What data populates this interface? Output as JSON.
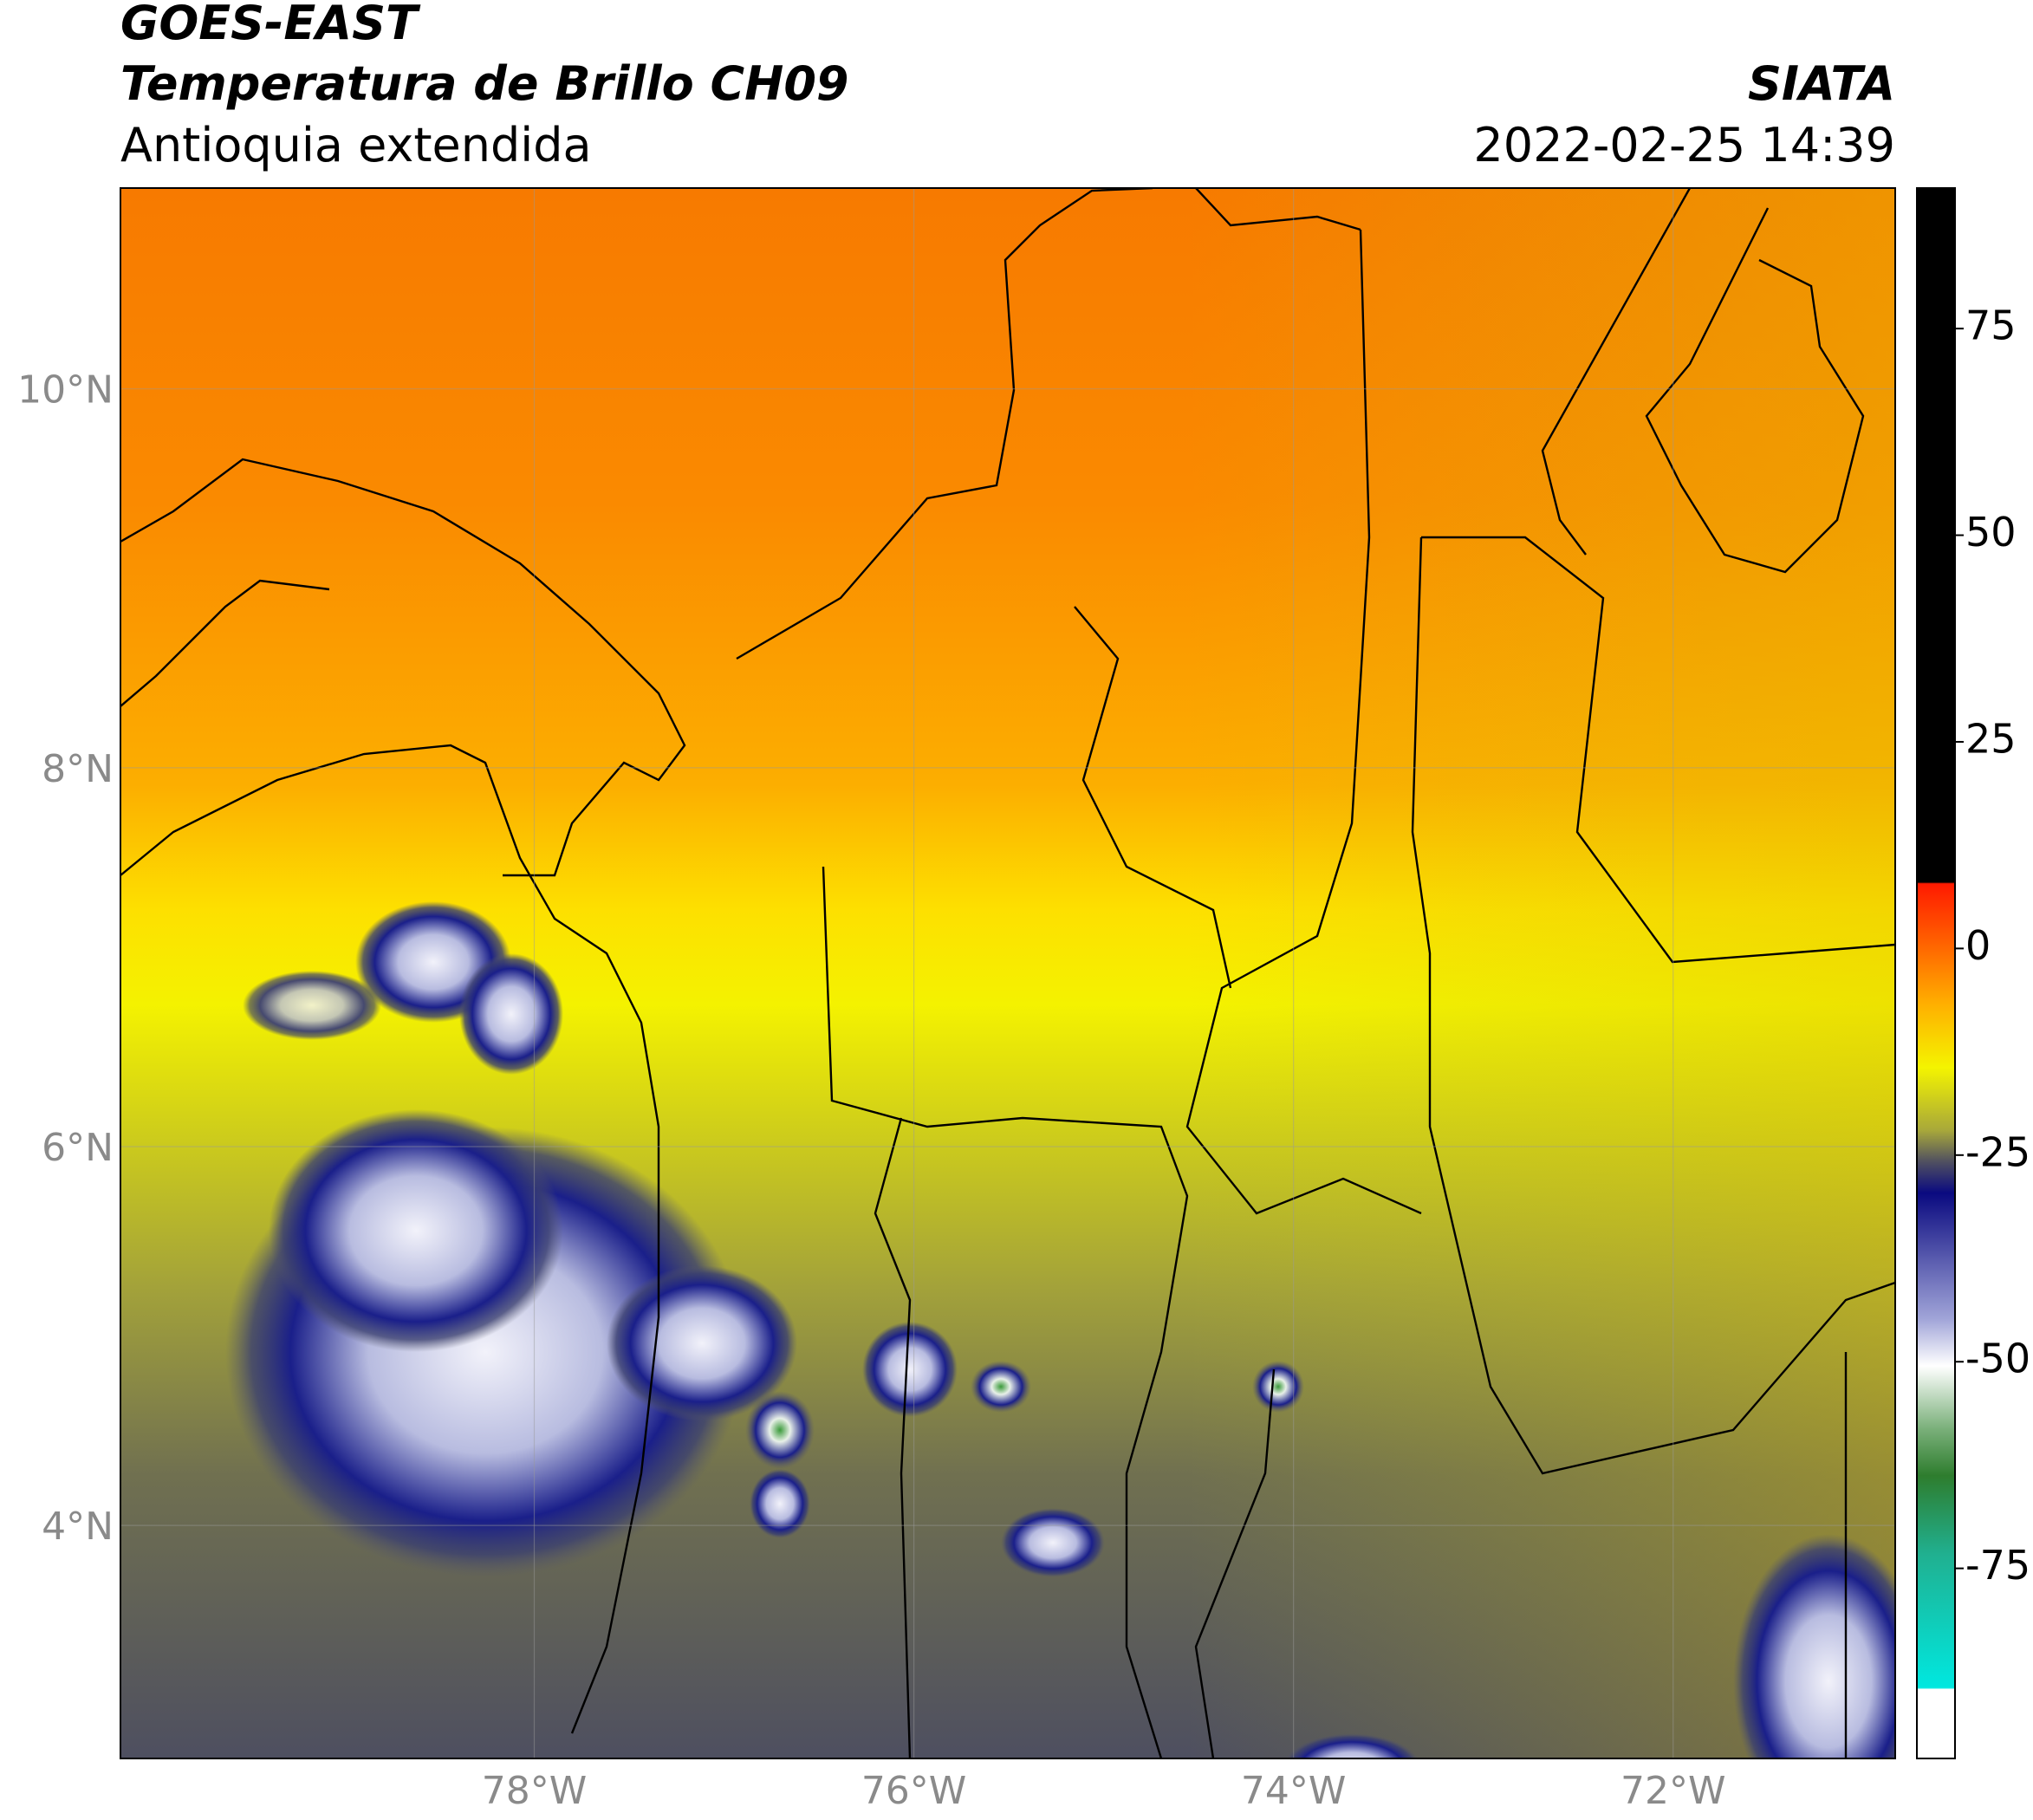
{
  "header": {
    "title": "GOES-EAST",
    "subtitle": "Temperatura de Brillo CH09",
    "region": "Antioquia extendida",
    "source": "SIATA",
    "datetime": "2022-02-25 14:39"
  },
  "map": {
    "xlim": [
      -80.18,
      -70.83
    ],
    "ylim": [
      2.77,
      11.06
    ],
    "xticks": [
      {
        "value": -78,
        "label": "78°W"
      },
      {
        "value": -76,
        "label": "76°W"
      },
      {
        "value": -74,
        "label": "74°W"
      },
      {
        "value": -72,
        "label": "72°W"
      }
    ],
    "yticks": [
      {
        "value": 4,
        "label": "4°N"
      },
      {
        "value": 6,
        "label": "6°N"
      },
      {
        "value": 8,
        "label": "8°N"
      },
      {
        "value": 10,
        "label": "10°N"
      }
    ]
  },
  "colorbar": {
    "lim": [
      -98,
      92
    ],
    "ticks": [
      -75,
      -50,
      -25,
      0,
      25,
      50,
      75
    ]
  }
}
